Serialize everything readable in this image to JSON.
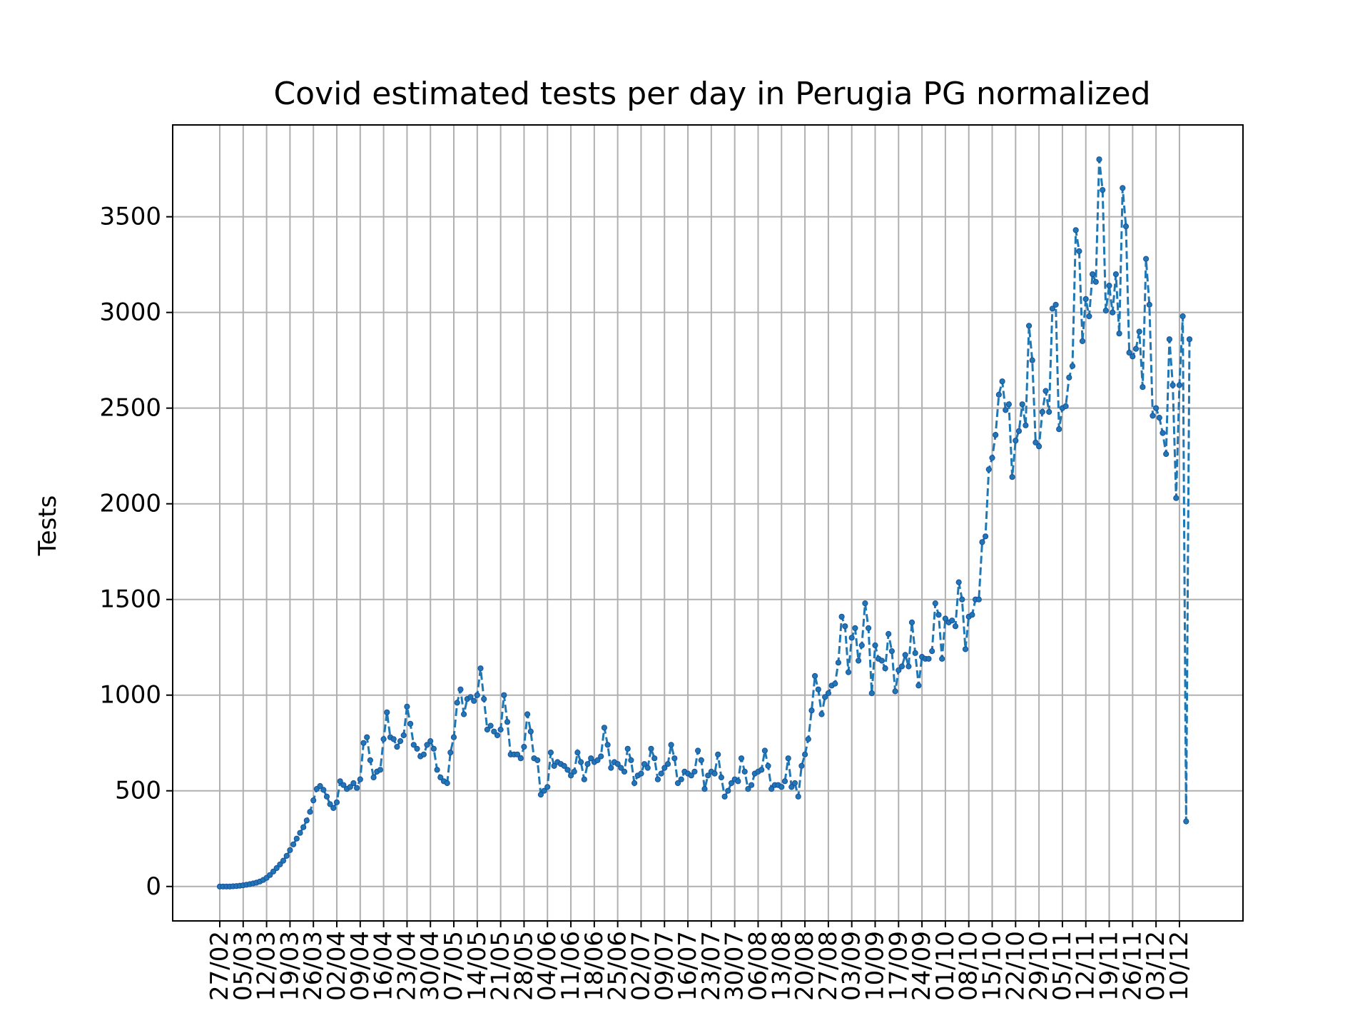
{
  "chart_data": {
    "type": "line",
    "title": "Covid estimated tests per day in Perugia PG normalized",
    "xlabel": "",
    "ylabel": "Tests",
    "ylim": [
      -180,
      3980
    ],
    "yticks": [
      0,
      500,
      1000,
      1500,
      2000,
      2500,
      3000,
      3500
    ],
    "xticks": [
      "27/02",
      "05/03",
      "12/03",
      "19/03",
      "26/03",
      "02/04",
      "09/04",
      "16/04",
      "23/04",
      "30/04",
      "07/05",
      "14/05",
      "21/05",
      "28/05",
      "04/06",
      "11/06",
      "18/06",
      "25/06",
      "02/07",
      "09/07",
      "16/07",
      "23/07",
      "30/07",
      "06/08",
      "13/08",
      "20/08",
      "27/08",
      "03/09",
      "10/09",
      "17/09",
      "24/09",
      "01/10",
      "08/10",
      "15/10",
      "22/10",
      "29/10",
      "05/11",
      "12/11",
      "19/11",
      "26/11",
      "03/12",
      "10/12"
    ],
    "grid": true,
    "start_date": "27/02",
    "series": [
      {
        "name": "",
        "color": "#1f77b4",
        "values": [
          0,
          0,
          0,
          0,
          1,
          2,
          4,
          6,
          9,
          12,
          16,
          20,
          26,
          34,
          45,
          60,
          78,
          96,
          115,
          135,
          160,
          190,
          220,
          250,
          280,
          310,
          345,
          390,
          450,
          510,
          525,
          505,
          470,
          430,
          410,
          440,
          550,
          530,
          510,
          520,
          540,
          515,
          560,
          750,
          780,
          660,
          570,
          600,
          610,
          770,
          910,
          780,
          770,
          730,
          760,
          790,
          940,
          850,
          740,
          720,
          680,
          690,
          740,
          760,
          720,
          610,
          570,
          550,
          540,
          700,
          780,
          960,
          1030,
          900,
          980,
          990,
          970,
          1000,
          1140,
          980,
          820,
          840,
          810,
          790,
          820,
          1000,
          860,
          690,
          690,
          690,
          670,
          730,
          900,
          810,
          670,
          660,
          480,
          500,
          520,
          700,
          630,
          650,
          640,
          630,
          610,
          580,
          600,
          700,
          650,
          560,
          640,
          670,
          650,
          660,
          680,
          830,
          740,
          620,
          650,
          640,
          620,
          600,
          720,
          660,
          540,
          580,
          590,
          640,
          620,
          720,
          670,
          560,
          590,
          620,
          640,
          740,
          670,
          540,
          560,
          600,
          590,
          580,
          600,
          710,
          660,
          510,
          580,
          600,
          590,
          690,
          570,
          470,
          500,
          540,
          560,
          550,
          670,
          600,
          510,
          530,
          590,
          600,
          610,
          710,
          630,
          510,
          530,
          530,
          520,
          550,
          670,
          520,
          540,
          470,
          630,
          690,
          770,
          920,
          1100,
          1030,
          900,
          990,
          1010,
          1050,
          1060,
          1170,
          1410,
          1360,
          1120,
          1300,
          1350,
          1180,
          1260,
          1480,
          1350,
          1010,
          1260,
          1190,
          1180,
          1140,
          1320,
          1230,
          1020,
          1130,
          1150,
          1210,
          1150,
          1380,
          1220,
          1050,
          1200,
          1190,
          1190,
          1230,
          1480,
          1420,
          1190,
          1400,
          1380,
          1390,
          1360,
          1590,
          1500,
          1240,
          1410,
          1420,
          1500,
          1500,
          1800,
          1830,
          2180,
          2240,
          2360,
          2570,
          2640,
          2490,
          2520,
          2140,
          2330,
          2380,
          2520,
          2410,
          2930,
          2750,
          2320,
          2300,
          2480,
          2590,
          2480,
          3020,
          3040,
          2390,
          2500,
          2510,
          2660,
          2720,
          3430,
          3320,
          2850,
          3070,
          2980,
          3200,
          3160,
          3800,
          3640,
          3010,
          3140,
          3000,
          3200,
          2890,
          3650,
          3450,
          2790,
          2770,
          2810,
          2900,
          2610,
          3280,
          3040,
          2460,
          2500,
          2450,
          2370,
          2260,
          2860,
          2620,
          2030,
          2620,
          2980,
          340,
          2860
        ]
      }
    ]
  }
}
